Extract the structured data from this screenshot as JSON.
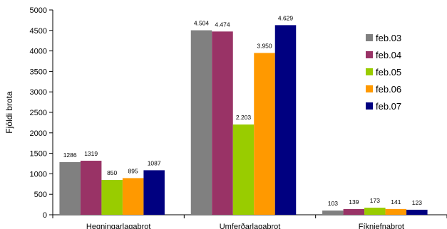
{
  "chart_data": {
    "type": "bar",
    "title": "",
    "ylabel": "Fjöldi brota",
    "xlabel": "",
    "ylim": [
      0,
      5000
    ],
    "yticks": [
      0,
      500,
      1000,
      1500,
      2000,
      2500,
      3000,
      3500,
      4000,
      4500,
      5000
    ],
    "categories": [
      "Hegningarlagabrot",
      "Umferðarlagabrot",
      "Fíkniefnabrot"
    ],
    "legend_position": "right",
    "grid": false,
    "series": [
      {
        "name": "feb.03",
        "color": "#808080",
        "values": [
          1286,
          4504,
          103
        ],
        "labels": [
          "1286",
          "4.504",
          "103"
        ]
      },
      {
        "name": "feb.04",
        "color": "#993366",
        "values": [
          1319,
          4474,
          139
        ],
        "labels": [
          "1319",
          "4.474",
          "139"
        ]
      },
      {
        "name": "feb.05",
        "color": "#99cc00",
        "values": [
          850,
          2203,
          173
        ],
        "labels": [
          "850",
          "2.203",
          "173"
        ]
      },
      {
        "name": "feb.06",
        "color": "#ff9900",
        "values": [
          895,
          3950,
          141
        ],
        "labels": [
          "895",
          "3.950",
          "141"
        ]
      },
      {
        "name": "feb.07",
        "color": "#000080",
        "values": [
          1087,
          4629,
          123
        ],
        "labels": [
          "1087",
          "4.629",
          "123"
        ]
      }
    ]
  }
}
